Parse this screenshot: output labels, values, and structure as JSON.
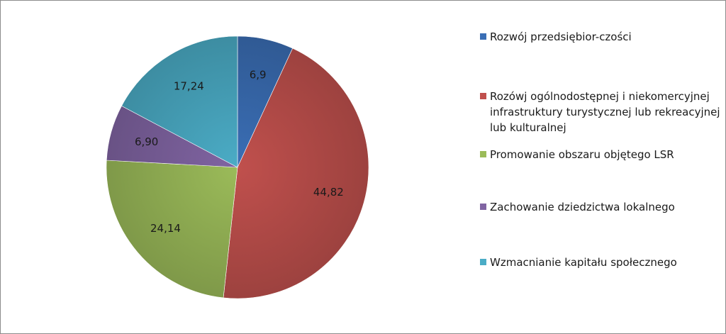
{
  "chart_data": {
    "type": "pie",
    "title": "",
    "legend_position": "right",
    "slices": [
      {
        "name": "Rozwój przedsiębior-czości",
        "value": 6.9,
        "label": "6,9",
        "color": "#3a6eb5"
      },
      {
        "name": "Rozówj ogólnodostępnej i niekomercyjnej infrastruktury turystycznej lub rekreacyjnej lub kulturalnej",
        "value": 44.82,
        "label": "44,82",
        "color": "#c0504d"
      },
      {
        "name": "Promowanie obszaru objętego LSR",
        "value": 24.14,
        "label": "24,14",
        "color": "#9bbb59"
      },
      {
        "name": "Zachowanie dziedzictwa lokalnego",
        "value": 6.9,
        "label": "6,90",
        "color": "#8064a2"
      },
      {
        "name": "Wzmacnianie kapitału społecznego",
        "value": 17.24,
        "label": "17,24",
        "color": "#4bacc6"
      }
    ]
  }
}
